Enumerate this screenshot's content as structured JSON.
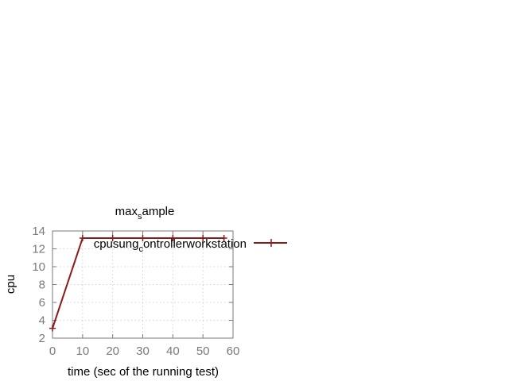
{
  "chart_data": {
    "type": "line",
    "title": {
      "base": "max",
      "sub": "s",
      "rest": "ample"
    },
    "xlabel": "time (sec of the running test)",
    "ylabel": "cpu",
    "xlim": [
      0,
      60
    ],
    "ylim": [
      2,
      14
    ],
    "x_ticks": [
      0,
      10,
      20,
      30,
      40,
      50,
      60
    ],
    "y_ticks": [
      2,
      4,
      6,
      8,
      10,
      12,
      14
    ],
    "grid": true,
    "legend_position": "top-right",
    "series": [
      {
        "name": {
          "base": "cpusung",
          "sub": "c",
          "rest": "ontrollerworkstation"
        },
        "color": "#8b1a1a",
        "marker": "plus",
        "x": [
          0,
          10,
          20,
          30,
          40,
          50,
          57
        ],
        "y": [
          3.1,
          13.2,
          13.2,
          13.2,
          13.2,
          13.2,
          13.2
        ]
      }
    ]
  }
}
